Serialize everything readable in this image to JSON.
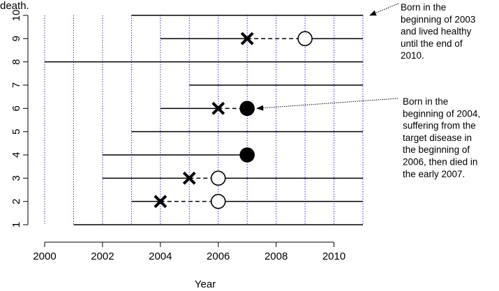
{
  "chart_data": {
    "type": "scatter",
    "title": "",
    "title_fragment": "death.",
    "xlabel": "Year",
    "ylabel": "",
    "xlim": [
      2000,
      2011
    ],
    "ylim": [
      1,
      10
    ],
    "x_ticks": [
      2000,
      2002,
      2004,
      2006,
      2008,
      2010
    ],
    "y_ticks": [
      1,
      2,
      3,
      4,
      5,
      6,
      7,
      8,
      9,
      10
    ],
    "vertical_gridlines": [
      2000,
      2001,
      2002,
      2003,
      2004,
      2005,
      2006,
      2007,
      2008,
      2009,
      2010,
      2011
    ],
    "gridline_color": "#3333dd",
    "subjects": [
      {
        "id": 1,
        "start": 2001,
        "end": 2011
      },
      {
        "id": 2,
        "start": 2003,
        "end": 2011,
        "disease": 2004,
        "death": 2006,
        "death_marker": "open"
      },
      {
        "id": 3,
        "start": 2002,
        "end": 2011,
        "disease": 2005,
        "death": 2006,
        "death_marker": "open"
      },
      {
        "id": 4,
        "start": 2002,
        "end": 2007,
        "death": 2007,
        "death_marker": "filled"
      },
      {
        "id": 5,
        "start": 2003,
        "end": 2011
      },
      {
        "id": 6,
        "start": 2004,
        "end": 2007,
        "disease": 2006,
        "death": 2007,
        "death_marker": "filled"
      },
      {
        "id": 7,
        "start": 2005,
        "end": 2011
      },
      {
        "id": 8,
        "start": 2000,
        "end": 2011
      },
      {
        "id": 9,
        "start": 2004,
        "end": 2011,
        "disease": 2007,
        "death": 2009,
        "death_marker": "open"
      },
      {
        "id": 10,
        "start": 2003,
        "end": 2011
      }
    ],
    "annotations": [
      {
        "target": {
          "x": 2011,
          "y": 10
        },
        "lines": [
          "Born in the",
          "beginning of 2003",
          "and lived healthy",
          "until the end of",
          "2010."
        ]
      },
      {
        "target": {
          "x": 2007,
          "y": 6
        },
        "lines": [
          "Born in the",
          "beginning of 2004,",
          "suffering from the",
          "target disease in",
          "the beginning of",
          "2006, then died in",
          "the early 2007."
        ]
      }
    ]
  }
}
